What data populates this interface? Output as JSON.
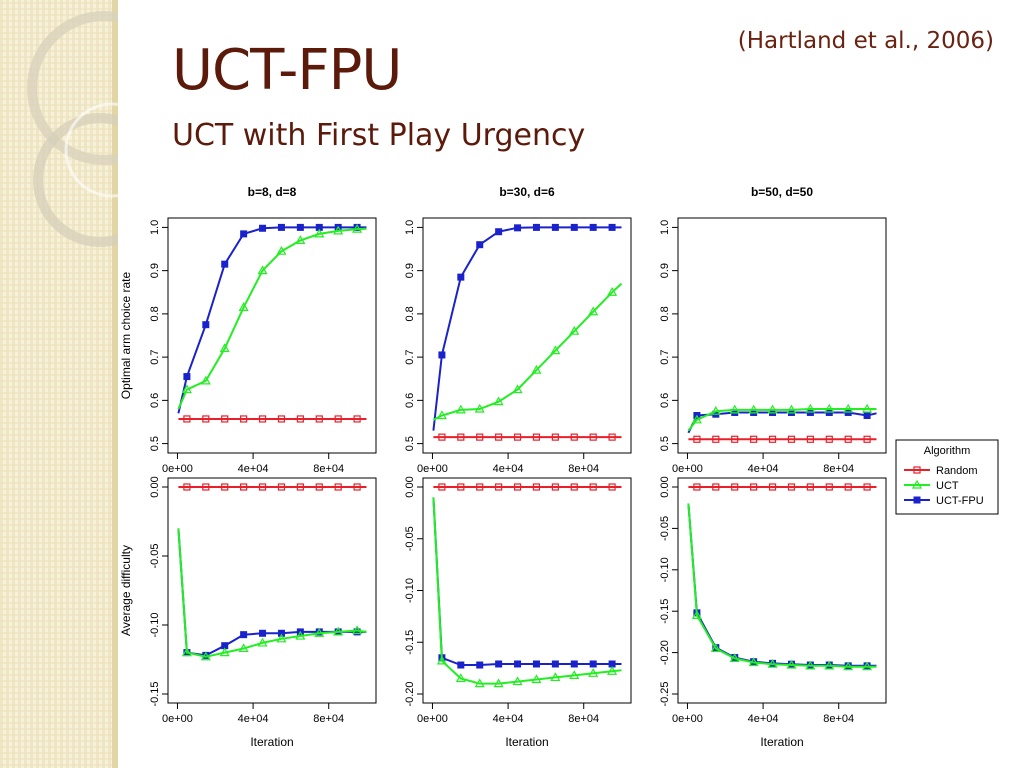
{
  "slide": {
    "title": "UCT-FPU",
    "subtitle": "UCT with First Play Urgency",
    "citation": "(Hartland et al., 2006)"
  },
  "colors": {
    "title": "#5c1a0b",
    "deco_stripes": "#efe6c4",
    "Random": "#e8202a",
    "UCT": "#22ee22",
    "UCT-FPU": "#1a22cc"
  },
  "chart_data": [
    {
      "type": "line",
      "panel": "top-left",
      "title": "b=8, d=8",
      "xlabel": "",
      "ylabel": "Optimal arm choice rate",
      "xlim": [
        -5000,
        105000
      ],
      "ylim": [
        0.5,
        1.0
      ],
      "xticks": [
        "0e+00",
        "4e+04",
        "8e+04"
      ],
      "yticks": [
        "0.5",
        "0.6",
        "0.7",
        "0.8",
        "0.9",
        "1.0"
      ],
      "series": [
        {
          "name": "Random",
          "x": [
            500,
            5000,
            15000,
            25000,
            35000,
            45000,
            55000,
            65000,
            75000,
            85000,
            95000,
            100000
          ],
          "y": [
            0.557,
            0.557,
            0.557,
            0.557,
            0.557,
            0.557,
            0.557,
            0.557,
            0.557,
            0.557,
            0.557,
            0.557
          ]
        },
        {
          "name": "UCT",
          "x": [
            500,
            5000,
            15000,
            25000,
            35000,
            45000,
            55000,
            65000,
            75000,
            85000,
            95000,
            100000
          ],
          "y": [
            0.58,
            0.625,
            0.645,
            0.72,
            0.815,
            0.9,
            0.945,
            0.97,
            0.985,
            0.992,
            0.996,
            0.997
          ]
        },
        {
          "name": "UCT-FPU",
          "x": [
            500,
            5000,
            15000,
            25000,
            35000,
            45000,
            55000,
            65000,
            75000,
            85000,
            95000,
            100000
          ],
          "y": [
            0.57,
            0.655,
            0.775,
            0.915,
            0.985,
            0.998,
            1.0,
            1.0,
            1.0,
            1.0,
            1.0,
            1.0
          ]
        }
      ]
    },
    {
      "type": "line",
      "panel": "top-middle",
      "title": "b=30, d=6",
      "xlabel": "",
      "ylabel": "",
      "xlim": [
        -5000,
        105000
      ],
      "ylim": [
        0.5,
        1.0
      ],
      "xticks": [
        "0e+00",
        "4e+04",
        "8e+04"
      ],
      "yticks": [
        "0.5",
        "0.6",
        "0.7",
        "0.8",
        "0.9",
        "1.0"
      ],
      "series": [
        {
          "name": "Random",
          "x": [
            500,
            5000,
            15000,
            25000,
            35000,
            45000,
            55000,
            65000,
            75000,
            85000,
            95000,
            100000
          ],
          "y": [
            0.515,
            0.515,
            0.515,
            0.515,
            0.515,
            0.515,
            0.515,
            0.515,
            0.515,
            0.515,
            0.515,
            0.515
          ]
        },
        {
          "name": "UCT",
          "x": [
            500,
            5000,
            15000,
            25000,
            35000,
            45000,
            55000,
            65000,
            75000,
            85000,
            95000,
            100000
          ],
          "y": [
            0.555,
            0.565,
            0.578,
            0.58,
            0.597,
            0.625,
            0.67,
            0.715,
            0.76,
            0.805,
            0.85,
            0.87
          ]
        },
        {
          "name": "UCT-FPU",
          "x": [
            500,
            5000,
            15000,
            25000,
            35000,
            45000,
            55000,
            65000,
            75000,
            85000,
            95000,
            100000
          ],
          "y": [
            0.53,
            0.705,
            0.885,
            0.96,
            0.99,
            0.999,
            1.0,
            1.0,
            1.0,
            1.0,
            1.0,
            1.0
          ]
        }
      ]
    },
    {
      "type": "line",
      "panel": "top-right",
      "title": "b=50, d=50",
      "xlabel": "",
      "ylabel": "",
      "xlim": [
        -5000,
        105000
      ],
      "ylim": [
        0.5,
        1.0
      ],
      "xticks": [
        "0e+00",
        "4e+04",
        "8e+04"
      ],
      "yticks": [
        "0.5",
        "0.6",
        "0.7",
        "0.8",
        "0.9",
        "1.0"
      ],
      "series": [
        {
          "name": "Random",
          "x": [
            500,
            5000,
            15000,
            25000,
            35000,
            45000,
            55000,
            65000,
            75000,
            85000,
            95000,
            100000
          ],
          "y": [
            0.51,
            0.51,
            0.51,
            0.51,
            0.51,
            0.51,
            0.51,
            0.51,
            0.51,
            0.51,
            0.51,
            0.51
          ]
        },
        {
          "name": "UCT",
          "x": [
            500,
            5000,
            15000,
            25000,
            35000,
            45000,
            55000,
            65000,
            75000,
            85000,
            95000,
            100000
          ],
          "y": [
            0.53,
            0.555,
            0.575,
            0.578,
            0.578,
            0.578,
            0.578,
            0.58,
            0.58,
            0.58,
            0.58,
            0.58
          ]
        },
        {
          "name": "UCT-FPU",
          "x": [
            500,
            5000,
            15000,
            25000,
            35000,
            45000,
            55000,
            65000,
            75000,
            85000,
            95000,
            100000
          ],
          "y": [
            0.525,
            0.565,
            0.568,
            0.572,
            0.572,
            0.572,
            0.572,
            0.572,
            0.572,
            0.572,
            0.565,
            0.57
          ]
        }
      ]
    },
    {
      "type": "line",
      "panel": "bottom-left",
      "title": "",
      "xlabel": "Iteration",
      "ylabel": "Average difficulty",
      "xlim": [
        -5000,
        105000
      ],
      "ylim": [
        -0.15,
        0.0
      ],
      "xticks": [
        "0e+00",
        "4e+04",
        "8e+04"
      ],
      "yticks": [
        "-0.15",
        "-0.10",
        "-0.05",
        "0.00"
      ],
      "series": [
        {
          "name": "Random",
          "x": [
            500,
            5000,
            15000,
            25000,
            35000,
            45000,
            55000,
            65000,
            75000,
            85000,
            95000,
            100000
          ],
          "y": [
            0.0,
            0.0,
            0.0,
            0.0,
            0.0,
            0.0,
            0.0,
            0.0,
            0.0,
            0.0,
            0.0,
            0.0
          ]
        },
        {
          "name": "UCT",
          "x": [
            500,
            5000,
            15000,
            25000,
            35000,
            45000,
            55000,
            65000,
            75000,
            85000,
            95000,
            100000
          ],
          "y": [
            -0.03,
            -0.12,
            -0.123,
            -0.12,
            -0.117,
            -0.113,
            -0.11,
            -0.108,
            -0.106,
            -0.105,
            -0.104,
            -0.105
          ]
        },
        {
          "name": "UCT-FPU",
          "x": [
            500,
            5000,
            15000,
            25000,
            35000,
            45000,
            55000,
            65000,
            75000,
            85000,
            95000,
            100000
          ],
          "y": [
            -0.03,
            -0.12,
            -0.122,
            -0.115,
            -0.107,
            -0.106,
            -0.106,
            -0.105,
            -0.105,
            -0.105,
            -0.105,
            -0.105
          ]
        }
      ]
    },
    {
      "type": "line",
      "panel": "bottom-middle",
      "title": "",
      "xlabel": "Iteration",
      "ylabel": "",
      "xlim": [
        -5000,
        105000
      ],
      "ylim": [
        -0.2,
        0.0
      ],
      "xticks": [
        "0e+00",
        "4e+04",
        "8e+04"
      ],
      "yticks": [
        "-0.20",
        "-0.15",
        "-0.10",
        "-0.05",
        "0.00"
      ],
      "series": [
        {
          "name": "Random",
          "x": [
            500,
            5000,
            15000,
            25000,
            35000,
            45000,
            55000,
            65000,
            75000,
            85000,
            95000,
            100000
          ],
          "y": [
            0.0,
            0.0,
            0.0,
            0.0,
            0.0,
            0.0,
            0.0,
            0.0,
            0.0,
            0.0,
            0.0,
            0.0
          ]
        },
        {
          "name": "UCT",
          "x": [
            500,
            5000,
            15000,
            25000,
            35000,
            45000,
            55000,
            65000,
            75000,
            85000,
            95000,
            100000
          ],
          "y": [
            -0.01,
            -0.168,
            -0.185,
            -0.19,
            -0.19,
            -0.188,
            -0.186,
            -0.184,
            -0.182,
            -0.18,
            -0.178,
            -0.177
          ]
        },
        {
          "name": "UCT-FPU",
          "x": [
            500,
            5000,
            15000,
            25000,
            35000,
            45000,
            55000,
            65000,
            75000,
            85000,
            95000,
            100000
          ],
          "y": [
            -0.01,
            -0.165,
            -0.172,
            -0.172,
            -0.171,
            -0.171,
            -0.171,
            -0.171,
            -0.171,
            -0.171,
            -0.171,
            -0.171
          ]
        }
      ]
    },
    {
      "type": "line",
      "panel": "bottom-right",
      "title": "",
      "xlabel": "Iteration",
      "ylabel": "",
      "xlim": [
        -5000,
        105000
      ],
      "ylim": [
        -0.25,
        0.0
      ],
      "xticks": [
        "0e+00",
        "4e+04",
        "8e+04"
      ],
      "yticks": [
        "-0.25",
        "-0.20",
        "-0.15",
        "-0.10",
        "-0.05",
        "0.00"
      ],
      "series": [
        {
          "name": "Random",
          "x": [
            500,
            5000,
            15000,
            25000,
            35000,
            45000,
            55000,
            65000,
            75000,
            85000,
            95000,
            100000
          ],
          "y": [
            0.0,
            0.0,
            0.0,
            0.0,
            0.0,
            0.0,
            0.0,
            0.0,
            0.0,
            0.0,
            0.0,
            0.0
          ]
        },
        {
          "name": "UCT",
          "x": [
            500,
            5000,
            15000,
            25000,
            35000,
            45000,
            55000,
            65000,
            75000,
            85000,
            95000,
            100000
          ],
          "y": [
            -0.02,
            -0.155,
            -0.195,
            -0.207,
            -0.212,
            -0.214,
            -0.215,
            -0.216,
            -0.216,
            -0.217,
            -0.217,
            -0.217
          ]
        },
        {
          "name": "UCT-FPU",
          "x": [
            500,
            5000,
            15000,
            25000,
            35000,
            45000,
            55000,
            65000,
            75000,
            85000,
            95000,
            100000
          ],
          "y": [
            -0.02,
            -0.152,
            -0.194,
            -0.206,
            -0.211,
            -0.213,
            -0.214,
            -0.215,
            -0.215,
            -0.216,
            -0.216,
            -0.216
          ]
        }
      ]
    }
  ],
  "legend": {
    "title": "Algorithm",
    "placement": "right",
    "entries": [
      {
        "label": "Random",
        "marker": "square-open"
      },
      {
        "label": "UCT",
        "marker": "triangle-open"
      },
      {
        "label": "UCT-FPU",
        "marker": "square-filled"
      }
    ]
  }
}
